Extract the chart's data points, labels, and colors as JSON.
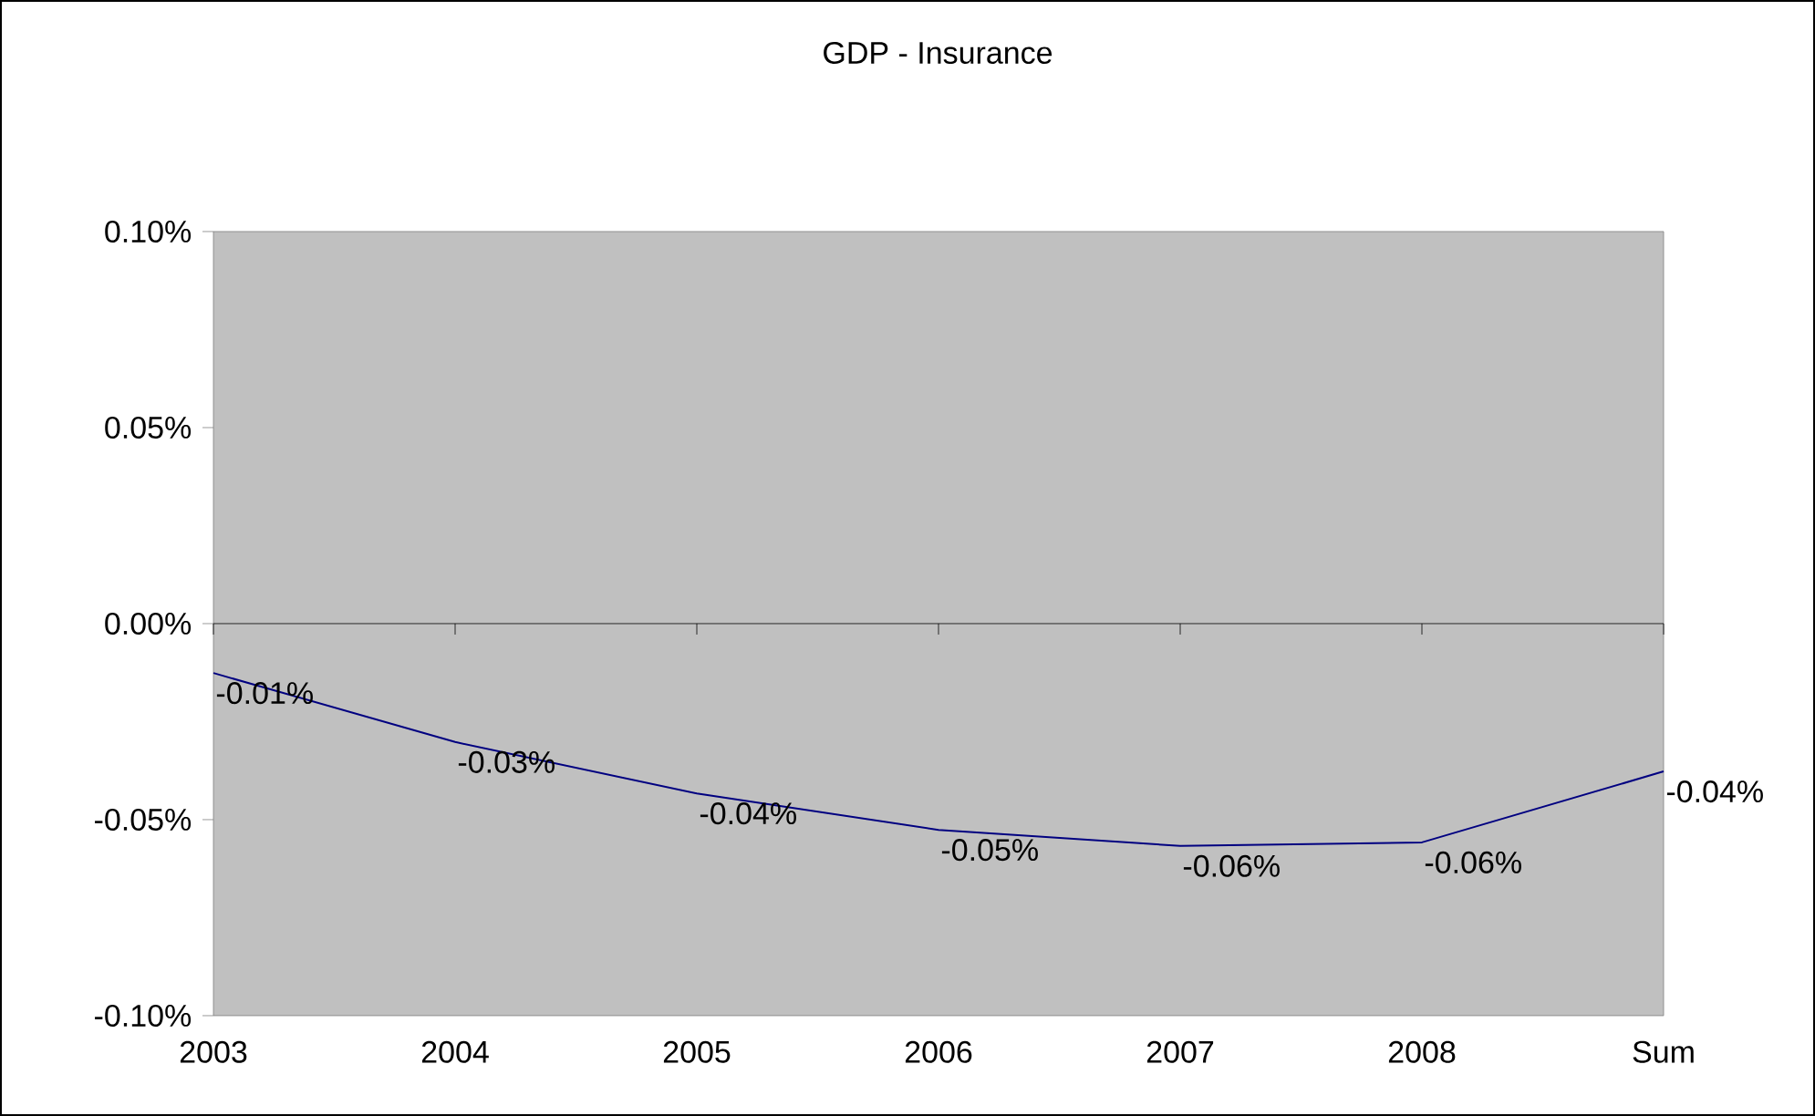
{
  "chart_data": {
    "type": "line",
    "title": "GDP - Insurance",
    "categories": [
      "2003",
      "2004",
      "2005",
      "2006",
      "2007",
      "2008",
      "Sum"
    ],
    "series": [
      {
        "color": "#000080",
        "values": [
          -0.0126,
          -0.0302,
          -0.0433,
          -0.0526,
          -0.0567,
          -0.0558,
          -0.0377
        ],
        "value_labels": [
          "-0.01%",
          "-0.03%",
          "-0.04%",
          "-0.05%",
          "-0.06%",
          "-0.06%",
          "-0.04%"
        ]
      }
    ],
    "ylim": [
      -0.1,
      0.1
    ],
    "yticks": [
      {
        "value": -0.1,
        "label": "-0.10%"
      },
      {
        "value": -0.05,
        "label": "-0.05%"
      },
      {
        "value": 0,
        "label": "0.00%"
      },
      {
        "value": 0.05,
        "label": "0.05%"
      },
      {
        "value": 0.1,
        "label": "0.10%"
      }
    ],
    "marker": "none",
    "line_style": "solid"
  }
}
